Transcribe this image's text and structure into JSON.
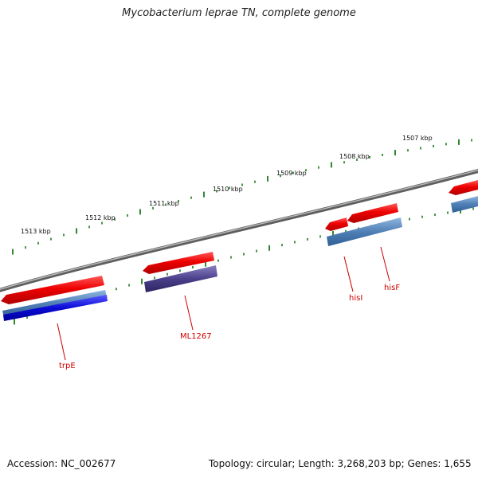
{
  "title": "Mycobacterium leprae TN, complete genome",
  "tick_labels": [
    "1513 kbp",
    "1512 kbp",
    "1511 kbp",
    "1510 kbp",
    "1509 kbp",
    "1508 kbp",
    "1507 kbp"
  ],
  "gene_labels": {
    "trpE": "trpE",
    "ml1267": "ML1267",
    "hisI": "hisI",
    "hisF": "hisF"
  },
  "footer": {
    "accession": "Accession: NC_002677",
    "summary": "Topology: circular; Length: 3,268,203 bp; Genes: 1,655"
  },
  "colors": {
    "backbone": "#7a7a7a",
    "ticks": "#1a7a1a",
    "forward_gene": "#e60000",
    "blue_feature": "#4f7fb5",
    "dark_blue_feature": "#0b0bd6",
    "purple_feature": "#4a3f8a",
    "gene_label": "#cc0000"
  }
}
